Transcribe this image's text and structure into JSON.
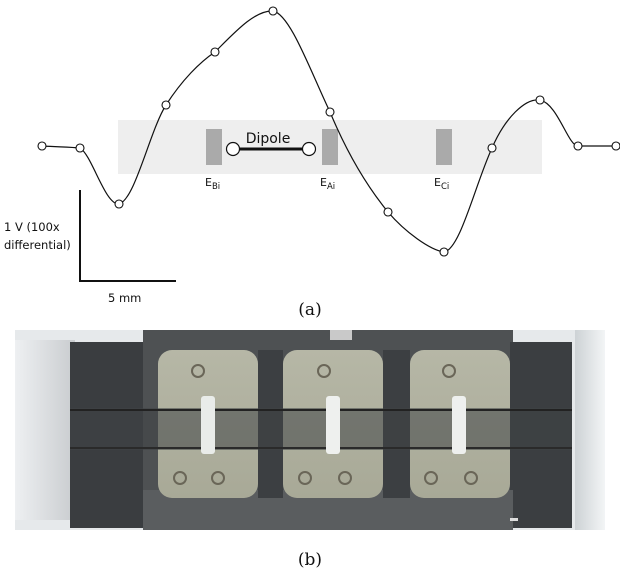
{
  "panel_a": {
    "dipole_label": "Dipole",
    "electrodes": [
      {
        "main": "E",
        "sub": "Bi"
      },
      {
        "main": "E",
        "sub": "Ai"
      },
      {
        "main": "E",
        "sub": "Ci"
      }
    ],
    "scale_bar": {
      "vertical_line1": "1 V (100x",
      "vertical_line2": "differential)",
      "horizontal": "5 mm"
    },
    "caption": "(a)"
  },
  "panel_b": {
    "caption": "(b)"
  },
  "colors": {
    "strip": "#eeeeee",
    "electrode": "#aaaaaa",
    "trace": "#111111"
  }
}
